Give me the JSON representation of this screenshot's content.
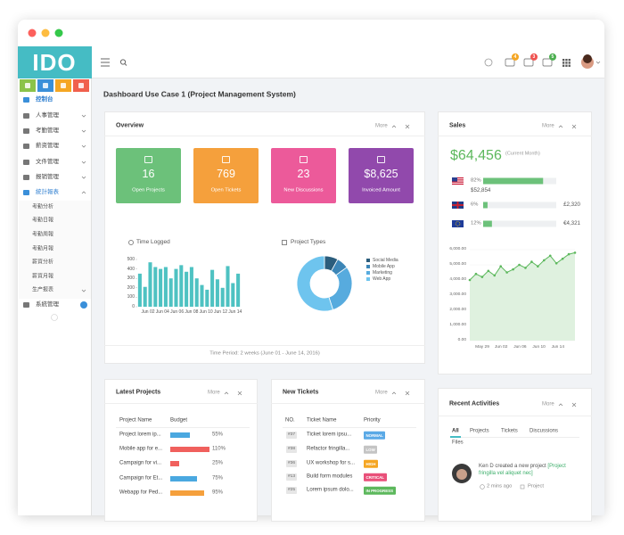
{
  "sidebar": {
    "logo": "IDO",
    "menu": [
      "控制台",
      "人事管理",
      "考勤管理",
      "薪资管理",
      "文件管理",
      "报销管理",
      "統計報表"
    ],
    "submenu": [
      "考勤分析",
      "考勤日報",
      "考勤周報",
      "考勤月報",
      "薪資分析",
      "薪資月報",
      "生产报表"
    ],
    "menu_bottom": "系統管理"
  },
  "topbar": {
    "badges": [
      4,
      3,
      5
    ]
  },
  "page_title": "Dashboard Use Case 1 (Project Management System)",
  "overview": {
    "title": "Overview",
    "more": "More",
    "cards": [
      {
        "value": 16,
        "label": "Open Projects",
        "color": "#6cc17a"
      },
      {
        "value": 769,
        "label": "Open Tickets",
        "color": "#f5a03c"
      },
      {
        "value": 23,
        "label": "New Discussions",
        "color": "#ec5a9a"
      },
      {
        "value": "$8,625",
        "label": "Invoiced Amount",
        "color": "#9149ac"
      }
    ],
    "time_logged": {
      "title": "Time Logged",
      "type": "bar",
      "color": "#4ec2c2",
      "values": [
        350,
        210,
        470,
        420,
        400,
        420,
        300,
        400,
        440,
        370,
        420,
        300,
        230,
        180,
        390,
        290,
        200,
        430,
        250,
        350
      ],
      "ylim": [
        0,
        500
      ],
      "yticks": [
        0,
        100,
        200,
        300,
        400,
        500
      ],
      "x_labels": [
        "Jun 02",
        "Jun 04",
        "Jun 06",
        "Jun 08",
        "Jun 10",
        "Jun 12",
        "Jun 14"
      ]
    },
    "project_types": {
      "title": "Project Types",
      "type": "pie",
      "series": [
        {
          "name": "Social Media",
          "color": "#2b5d7c",
          "value": 8
        },
        {
          "name": "Mobile App",
          "color": "#3c86b7",
          "value": 7
        },
        {
          "name": "Marketing",
          "color": "#57abde",
          "value": 30
        },
        {
          "name": "Web App",
          "color": "#6ec4ee",
          "value": 55
        }
      ]
    },
    "footer": "Time Period: 2 weeks (June 01 - June 14, 2016)"
  },
  "sales": {
    "title": "Sales",
    "more": "More",
    "total": "$64,456",
    "total_note": "(Current Month)",
    "percents": [
      82,
      6,
      12
    ],
    "percent_labels": [
      "82%",
      "6%",
      "12%"
    ],
    "amounts": [
      "$52,854",
      "£2,320",
      "€4,321"
    ],
    "bar_color": "#6cc17a",
    "chart": {
      "type": "area",
      "color": "#5cb85c",
      "values": [
        4000,
        4400,
        4200,
        4600,
        4300,
        4900,
        4500,
        4700,
        5000,
        4800,
        5200,
        4900,
        5300,
        5600,
        5100,
        5400,
        5700,
        5800
      ],
      "ylim": [
        0,
        6000
      ],
      "yticks": [
        {
          "value": 0,
          "label": "0.00"
        },
        {
          "value": 1000,
          "label": "1,000.00"
        },
        {
          "value": 2000,
          "label": "2,000.00"
        },
        {
          "value": 3000,
          "label": "3,000.00"
        },
        {
          "value": 4000,
          "label": "4,000.00"
        },
        {
          "value": 5000,
          "label": "5,000.00"
        },
        {
          "value": 6000,
          "label": "6,000.00"
        }
      ],
      "x_labels": [
        "May 29",
        "Jun 02",
        "Jun 06",
        "Jun 10",
        "Jun 14"
      ]
    }
  },
  "latest_projects": {
    "title": "Latest Projects",
    "more": "More",
    "columns": [
      "Project Name",
      "Budget"
    ],
    "names": [
      "Project lorem ip...",
      "Mobile app for e...",
      "Campaign for vi...",
      "Campaign for Et...",
      "Webapp for Ped..."
    ],
    "budgets": [
      55,
      110,
      25,
      75,
      95
    ],
    "budget_labels": [
      "55%",
      "110%",
      "25%",
      "75%",
      "95%"
    ],
    "colors": [
      "#4aa8e0",
      "#f0605d",
      "#f0605d",
      "#4aa8e0",
      "#f5a03c"
    ]
  },
  "new_tickets": {
    "title": "New Tickets",
    "more": "More",
    "columns": [
      "NO.",
      "Ticket Name",
      "Priority"
    ],
    "rows": [
      {
        "no": "#37",
        "name": "Ticket lorem ipsu...",
        "priority": "NORMAL",
        "color": "#5aa9e6"
      },
      {
        "no": "#38",
        "name": "Refactor fringilla...",
        "priority": "LOW",
        "color": "#c4c4c4"
      },
      {
        "no": "#36",
        "name": "UX workshop for s...",
        "priority": "HIGH",
        "color": "#f5a623"
      },
      {
        "no": "#13",
        "name": "Build form modules",
        "priority": "CRITICAL",
        "color": "#e9507a"
      },
      {
        "no": "#25",
        "name": "Lorem ipsum dolo...",
        "priority": "IN PROGRESS",
        "color": "#5cb85c"
      }
    ]
  },
  "recent_activities": {
    "title": "Recent Activities",
    "more": "More",
    "tabs": [
      "All",
      "Projects",
      "Tickets",
      "Discussions",
      "Files"
    ],
    "activity": {
      "actor": "Ken D",
      "action": "created a new project",
      "link": "[Project fringilla vel aliquet nec]",
      "time": "2 mins ago",
      "tag": "Project"
    }
  }
}
